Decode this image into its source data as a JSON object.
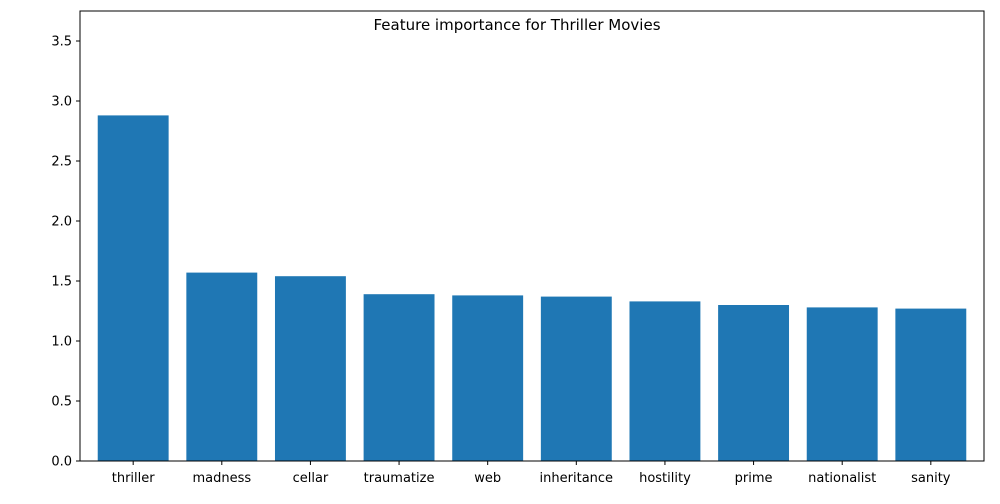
{
  "chart_data": {
    "type": "bar",
    "title": "Feature importance for Thriller Movies",
    "xlabel": "",
    "ylabel": "",
    "categories": [
      "thriller",
      "madness",
      "cellar",
      "traumatize",
      "web",
      "inheritance",
      "hostility",
      "prime",
      "nationalist",
      "sanity"
    ],
    "values": [
      2.88,
      1.57,
      1.54,
      1.39,
      1.38,
      1.37,
      1.33,
      1.3,
      1.28,
      1.27
    ],
    "ylim": [
      0,
      3.75
    ],
    "yticks": [
      0.0,
      0.5,
      1.0,
      1.5,
      2.0,
      2.5,
      3.0,
      3.5
    ],
    "ytick_labels": [
      "0.0",
      "0.5",
      "1.0",
      "1.5",
      "2.0",
      "2.5",
      "3.0",
      "3.5"
    ],
    "bar_color": "#1f77b4",
    "grid": false,
    "legend": "none"
  }
}
